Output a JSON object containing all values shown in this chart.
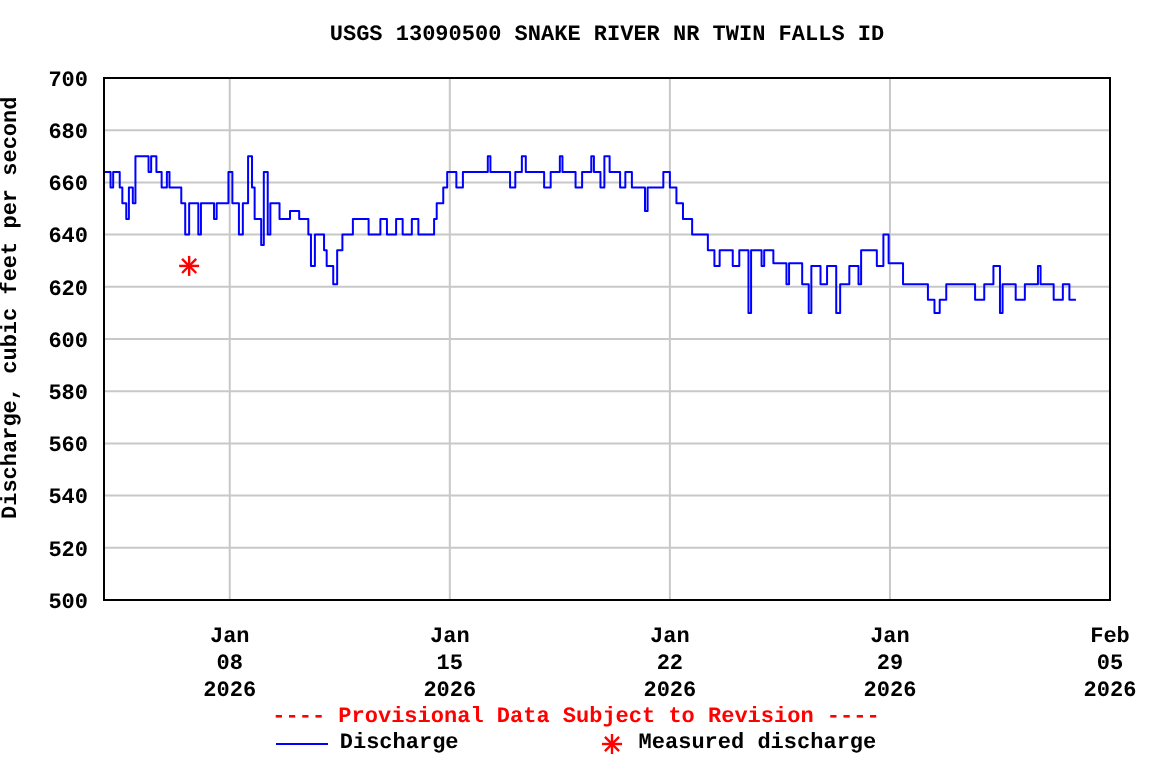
{
  "chart_data": {
    "type": "step",
    "title": "USGS 13090500 SNAKE RIVER NR TWIN FALLS ID",
    "ylabel": "Discharge, cubic feet per second",
    "annotations": [
      "---- Provisional Data Subject to Revision ----"
    ],
    "xlim": [
      "2026-01-04T00:00",
      "2026-02-05T00:00"
    ],
    "xticks": [
      {
        "value": "2026-01-08",
        "label": "Jan 08 2026"
      },
      {
        "value": "2026-01-15",
        "label": "Jan 15 2026"
      },
      {
        "value": "2026-01-22",
        "label": "Jan 22 2026"
      },
      {
        "value": "2026-01-29",
        "label": "Jan 29 2026"
      },
      {
        "value": "2026-02-05",
        "label": "Feb 05 2026"
      }
    ],
    "ylim": [
      500,
      700
    ],
    "yticks": [
      500,
      520,
      540,
      560,
      580,
      600,
      620,
      640,
      660,
      680,
      700
    ],
    "grid": true,
    "legend": "bottom",
    "series": [
      {
        "name": "Discharge",
        "color": "#0000ff",
        "x": [
          "2026-01-04T00:00",
          "2026-01-04T05:00",
          "2026-01-04T07:00",
          "2026-01-04T12:00",
          "2026-01-04T14:00",
          "2026-01-04T17:00",
          "2026-01-04T19:00",
          "2026-01-04T22:00",
          "2026-01-05T00:00",
          "2026-01-05T10:00",
          "2026-01-05T12:00",
          "2026-01-05T16:00",
          "2026-01-05T20:00",
          "2026-01-06T00:00",
          "2026-01-06T02:00",
          "2026-01-06T11:00",
          "2026-01-06T14:00",
          "2026-01-06T17:00",
          "2026-01-07T00:00",
          "2026-01-07T02:00",
          "2026-01-07T12:00",
          "2026-01-07T14:00",
          "2026-01-07T23:00",
          "2026-01-08T02:00",
          "2026-01-08T07:00",
          "2026-01-08T10:00",
          "2026-01-08T14:00",
          "2026-01-08T17:00",
          "2026-01-08T19:00",
          "2026-01-09T00:00",
          "2026-01-09T02:00",
          "2026-01-09T05:00",
          "2026-01-09T07:00",
          "2026-01-09T14:00",
          "2026-01-09T22:00",
          "2026-01-10T05:00",
          "2026-01-10T12:00",
          "2026-01-10T14:00",
          "2026-01-10T17:00",
          "2026-01-11T00:00",
          "2026-01-11T02:00",
          "2026-01-11T07:00",
          "2026-01-11T10:00",
          "2026-01-11T14:00",
          "2026-01-11T22:00",
          "2026-01-12T10:00",
          "2026-01-12T19:00",
          "2026-01-13T00:00",
          "2026-01-13T07:00",
          "2026-01-13T12:00",
          "2026-01-13T19:00",
          "2026-01-14T00:00",
          "2026-01-14T12:00",
          "2026-01-14T14:00",
          "2026-01-14T19:00",
          "2026-01-14T22:00",
          "2026-01-15T05:00",
          "2026-01-15T10:00",
          "2026-01-16T00:00",
          "2026-01-16T05:00",
          "2026-01-16T07:00",
          "2026-01-16T22:00",
          "2026-01-17T02:00",
          "2026-01-17T07:00",
          "2026-01-17T10:00",
          "2026-01-18T00:00",
          "2026-01-18T05:00",
          "2026-01-18T12:00",
          "2026-01-18T14:00",
          "2026-01-19T00:00",
          "2026-01-19T05:00",
          "2026-01-19T12:00",
          "2026-01-19T14:00",
          "2026-01-19T19:00",
          "2026-01-19T22:00",
          "2026-01-20T02:00",
          "2026-01-20T10:00",
          "2026-01-20T14:00",
          "2026-01-20T19:00",
          "2026-01-21T05:00",
          "2026-01-21T07:00",
          "2026-01-21T19:00",
          "2026-01-22T00:00",
          "2026-01-22T05:00",
          "2026-01-22T10:00",
          "2026-01-22T17:00",
          "2026-01-23T05:00",
          "2026-01-23T10:00",
          "2026-01-23T14:00",
          "2026-01-24T00:00",
          "2026-01-24T05:00",
          "2026-01-24T12:00",
          "2026-01-24T14:00",
          "2026-01-24T22:00",
          "2026-01-25T00:00",
          "2026-01-25T07:00",
          "2026-01-25T17:00",
          "2026-01-25T19:00",
          "2026-01-26T05:00",
          "2026-01-26T10:00",
          "2026-01-26T12:00",
          "2026-01-26T19:00",
          "2026-01-27T00:00",
          "2026-01-27T07:00",
          "2026-01-27T10:00",
          "2026-01-27T17:00",
          "2026-01-28T00:00",
          "2026-01-28T02:00",
          "2026-01-28T14:00",
          "2026-01-28T19:00",
          "2026-01-28T23:00",
          "2026-01-29T10:00",
          "2026-01-30T05:00",
          "2026-01-30T10:00",
          "2026-01-30T14:00",
          "2026-01-30T19:00",
          "2026-01-31T17:00",
          "2026-02-01T00:00",
          "2026-02-01T07:00",
          "2026-02-01T12:00",
          "2026-02-01T14:00",
          "2026-02-02T00:00",
          "2026-02-02T07:00",
          "2026-02-02T17:00",
          "2026-02-02T19:00",
          "2026-02-03T05:00",
          "2026-02-03T12:00",
          "2026-02-03T17:00",
          "2026-02-03T22:00"
        ],
        "values": [
          664,
          658,
          664,
          658,
          652,
          646,
          658,
          652,
          670,
          664,
          670,
          664,
          658,
          664,
          658,
          652,
          640,
          652,
          640,
          652,
          646,
          652,
          664,
          652,
          640,
          652,
          670,
          658,
          646,
          636,
          664,
          640,
          652,
          646,
          649,
          646,
          640,
          628,
          640,
          634,
          628,
          621,
          634,
          640,
          646,
          640,
          646,
          640,
          646,
          640,
          646,
          640,
          646,
          652,
          658,
          664,
          658,
          664,
          664,
          670,
          664,
          658,
          664,
          670,
          664,
          658,
          664,
          670,
          664,
          658,
          664,
          670,
          664,
          658,
          670,
          664,
          658,
          664,
          658,
          649,
          658,
          664,
          658,
          652,
          646,
          640,
          634,
          628,
          634,
          628,
          634,
          610,
          634,
          628,
          634,
          629,
          621,
          629,
          621,
          610,
          628,
          621,
          628,
          610,
          621,
          628,
          621,
          634,
          628,
          640,
          629,
          621,
          615,
          610,
          615,
          621,
          615,
          621,
          628,
          610,
          621,
          615,
          621,
          628,
          621,
          615,
          621,
          615,
          615
        ]
      },
      {
        "name": "Measured discharge",
        "type": "scatter",
        "color": "#ff0000",
        "marker": "cross",
        "x": [
          "2026-01-06T17:00"
        ],
        "values": [
          628
        ]
      }
    ]
  }
}
